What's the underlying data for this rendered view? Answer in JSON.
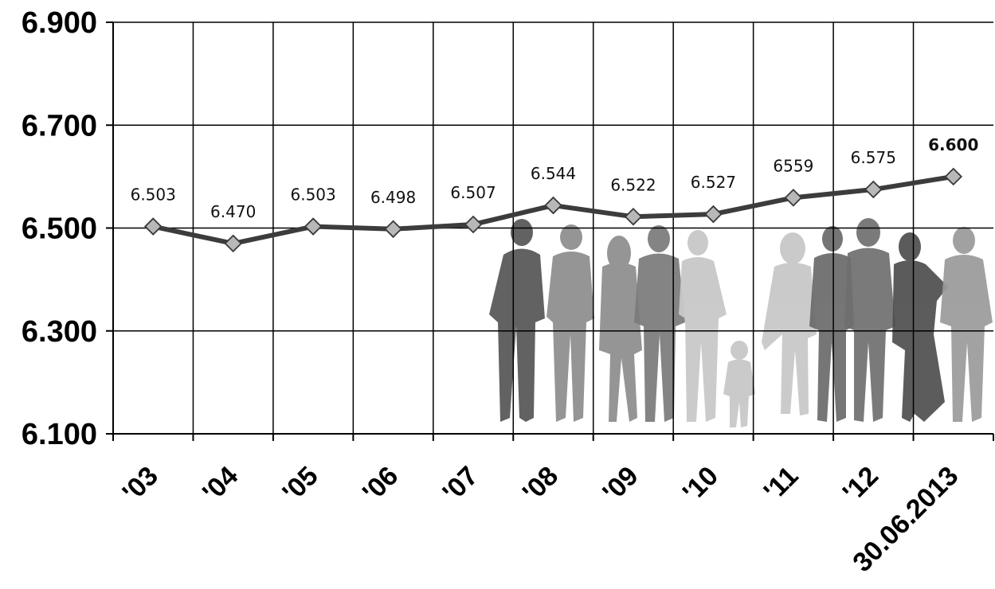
{
  "chart_data": {
    "type": "line",
    "categories": [
      "'03",
      "'04",
      "'05",
      "'06",
      "'07",
      "'08",
      "'09",
      "'10",
      "'11",
      "'12",
      "30.06.2013"
    ],
    "values": [
      6503,
      6470,
      6503,
      6498,
      6507,
      6544,
      6522,
      6527,
      6559,
      6575,
      6600
    ],
    "data_labels": [
      "6.503",
      "6.470",
      "6.503",
      "6.498",
      "6.507",
      "6.544",
      "6.522",
      "6.527",
      "6559",
      "6.575",
      "6.600"
    ],
    "highlight_label_index": 10,
    "y_ticks": [
      6100,
      6300,
      6500,
      6700,
      6900
    ],
    "y_tick_labels": [
      "6.100",
      "6.300",
      "6.500",
      "6.700",
      "6.900"
    ],
    "ylim": [
      6100,
      6900
    ],
    "grid": true,
    "legend": "none",
    "title": "",
    "xlabel": "",
    "ylabel": "",
    "colors": {
      "line": "#3c3c3c",
      "marker_fill": "#b8b8b8",
      "marker_stroke": "#3a3a3a",
      "grid": "#000000"
    },
    "background_image": "people-silhouettes"
  }
}
